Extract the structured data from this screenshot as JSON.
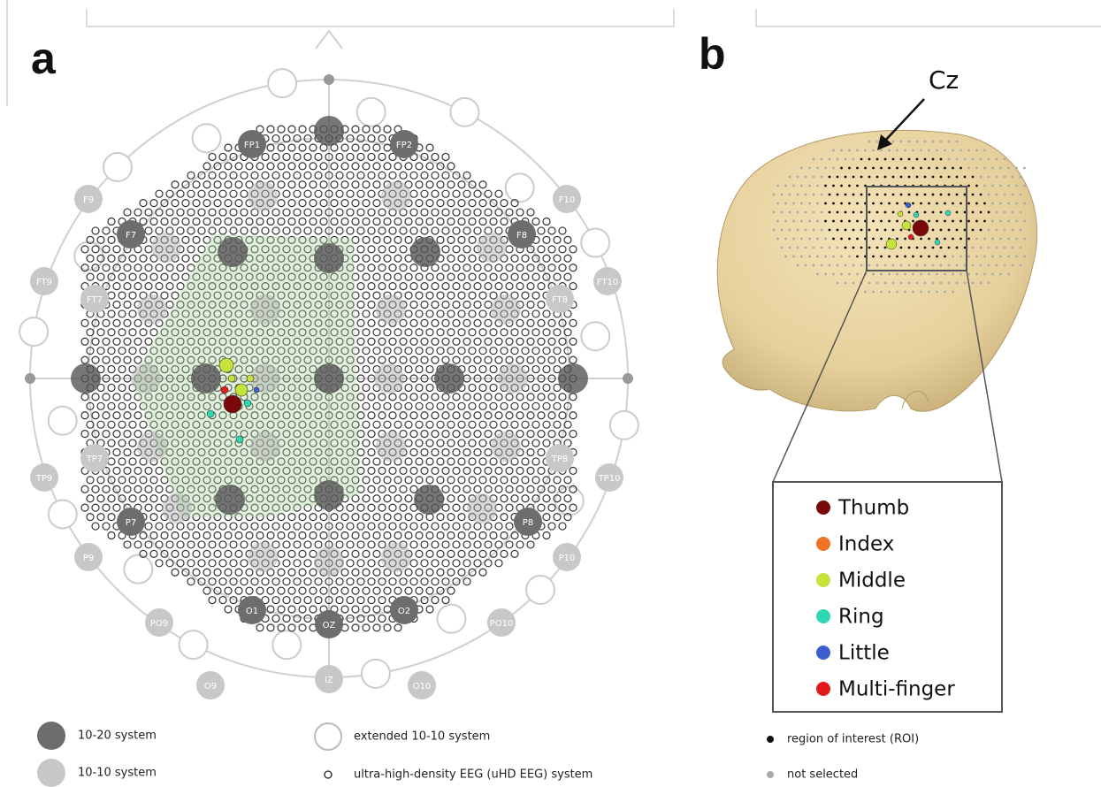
{
  "panel_a": {
    "label": "a",
    "electrodes": [
      "FP1",
      "FP2",
      "F9",
      "F10",
      "F7",
      "F8",
      "FT9",
      "FT10",
      "FT7",
      "FT8",
      "TP9",
      "TP10",
      "TP7",
      "TP8",
      "P7",
      "P8",
      "P9",
      "P10",
      "PO9",
      "PO10",
      "O1",
      "O2",
      "OZ",
      "O9",
      "O10",
      "IZ"
    ]
  },
  "panel_b": {
    "label": "b",
    "pointer": "Cz",
    "fingers": [
      {
        "label": "Thumb",
        "color": "#7a0a0a"
      },
      {
        "label": "Index",
        "color": "#ee7322"
      },
      {
        "label": "Middle",
        "color": "#c5e33a"
      },
      {
        "label": "Ring",
        "color": "#2fd7b4"
      },
      {
        "label": "Little",
        "color": "#3d5fce"
      },
      {
        "label": "Multi-finger",
        "color": "#e31a1c"
      }
    ]
  },
  "legend": {
    "system_10_20": "10-20 system",
    "system_10_10": "10-10 system",
    "extended": "extended 10-10 system",
    "uhd": "ultra-high-density EEG (uHD EEG) system",
    "roi": "region of interest (ROI)",
    "not_selected": "not selected"
  }
}
